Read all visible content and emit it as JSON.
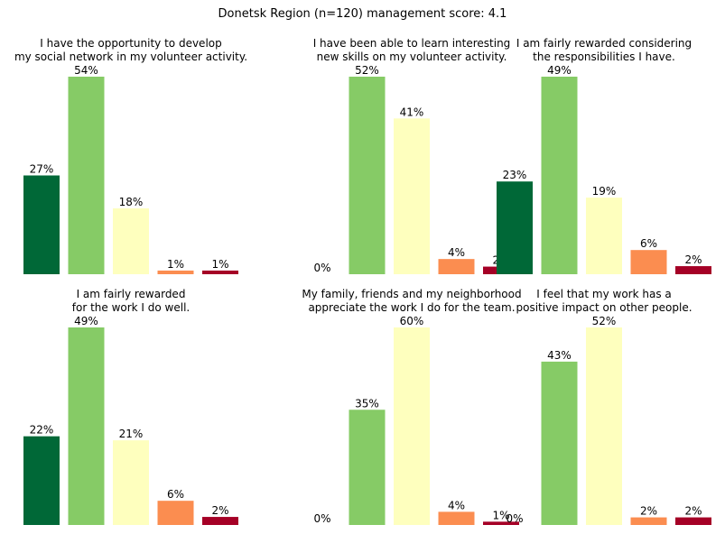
{
  "suptitle": "Donetsk Region (n=120) management score: 4.1",
  "colors": [
    "#006837",
    "#86cb66",
    "#feffbe",
    "#fb8d50",
    "#a50026"
  ],
  "chart_data": [
    {
      "type": "bar",
      "title_lines": [
        "I have the opportunity to develop",
        "my social network in my volunteer activity."
      ],
      "values": [
        27,
        54,
        18,
        1,
        1
      ],
      "labels": [
        "27%",
        "54%",
        "18%",
        "1%",
        "1%"
      ]
    },
    {
      "type": "bar",
      "title_lines": [
        "I have been able to learn interesting",
        "new skills on my volunteer activity."
      ],
      "values": [
        0,
        52,
        41,
        4,
        2
      ],
      "labels": [
        "0%",
        "52%",
        "41%",
        "4%",
        "2%"
      ]
    },
    {
      "type": "bar",
      "title_lines": [
        "I am fairly rewarded considering",
        "the responsibilities I have."
      ],
      "values": [
        23,
        49,
        19,
        6,
        2
      ],
      "labels": [
        "23%",
        "49%",
        "19%",
        "6%",
        "2%"
      ]
    },
    {
      "type": "bar",
      "title_lines": [
        "I am fairly rewarded",
        "for the work I do well."
      ],
      "values": [
        22,
        49,
        21,
        6,
        2
      ],
      "labels": [
        "22%",
        "49%",
        "21%",
        "6%",
        "2%"
      ]
    },
    {
      "type": "bar",
      "title_lines": [
        "My family, friends and my neighborhood",
        "appreciate the work I do for the team."
      ],
      "values": [
        0,
        35,
        60,
        4,
        1
      ],
      "labels": [
        "0%",
        "35%",
        "60%",
        "4%",
        "1%"
      ]
    },
    {
      "type": "bar",
      "title_lines": [
        "I feel that my work has a",
        "positive impact on other people."
      ],
      "values": [
        0,
        43,
        52,
        2,
        2
      ],
      "labels": [
        "0%",
        "43%",
        "52%",
        "2%",
        "2%"
      ]
    }
  ]
}
